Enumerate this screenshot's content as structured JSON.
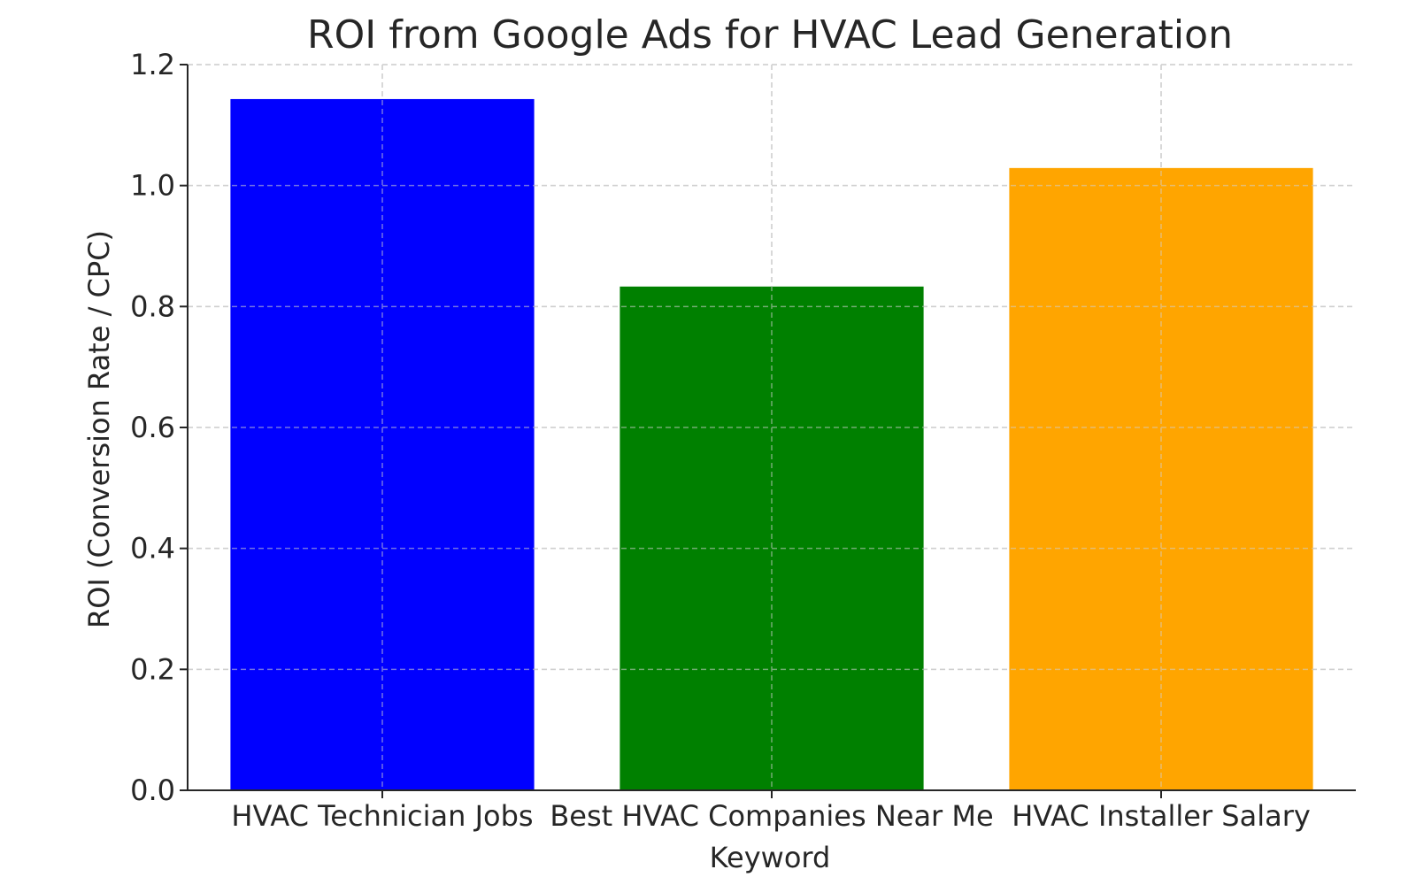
{
  "chart_data": {
    "type": "bar",
    "title": "ROI from Google Ads for HVAC Lead Generation",
    "xlabel": "Keyword",
    "ylabel": "ROI (Conversion Rate / CPC)",
    "categories": [
      "HVAC Technician Jobs",
      "Best HVAC Companies Near Me",
      "HVAC Installer Salary"
    ],
    "values": [
      1.143,
      0.833,
      1.029
    ],
    "colors": [
      "#0000ff",
      "#008000",
      "#ffa500"
    ],
    "ylim": [
      0,
      1.2
    ],
    "yticks": [
      "0.0",
      "0.2",
      "0.4",
      "0.6",
      "0.8",
      "1.0",
      "1.2"
    ],
    "grid": true
  }
}
